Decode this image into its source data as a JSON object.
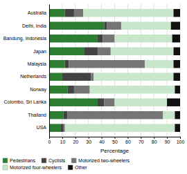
{
  "chart_data": {
    "type": "bar",
    "orientation": "horizontal",
    "stacked": true,
    "categories": [
      "USA",
      "Thailand",
      "Colombo, Sri Lanka",
      "Norway",
      "Netherlands",
      "Malaysia",
      "Japan",
      "Bandung, Indonesia",
      "Delhi, India",
      "Australia"
    ],
    "series": [
      {
        "name": "Pedestrians",
        "color": "#2d7d32",
        "values": [
          9,
          11,
          37,
          14,
          10,
          12,
          27,
          37,
          42,
          12
        ]
      },
      {
        "name": "Cyclists",
        "color": "#424242",
        "values": [
          2,
          3,
          5,
          5,
          22,
          3,
          10,
          4,
          2,
          7
        ]
      },
      {
        "name": "Motorized two-wheelers",
        "color": "#757575",
        "values": [
          1,
          73,
          8,
          12,
          2,
          58,
          10,
          9,
          11,
          7
        ]
      },
      {
        "name": "Motorized four-wheelers",
        "color": "#c8e6c9",
        "values": [
          84,
          9,
          40,
          65,
          61,
          22,
          48,
          44,
          38,
          69
        ]
      },
      {
        "name": "Other",
        "color": "#111111",
        "values": [
          4,
          4,
          10,
          4,
          5,
          5,
          5,
          6,
          7,
          5
        ]
      }
    ],
    "xlabel": "Percentage",
    "xlim": [
      0,
      100
    ],
    "xticks": [
      0,
      10,
      20,
      30,
      40,
      50,
      60,
      70,
      80,
      90,
      100
    ],
    "grid": true,
    "legend": "bottom"
  }
}
